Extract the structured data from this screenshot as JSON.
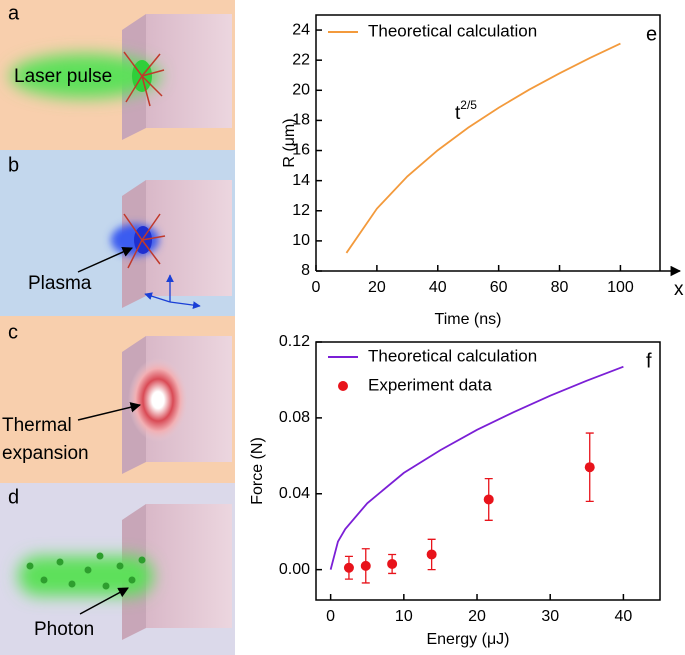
{
  "panels": [
    {
      "label": "a",
      "caption": [
        "Laser pulse"
      ]
    },
    {
      "label": "b",
      "caption": [
        "Plasma"
      ]
    },
    {
      "label": "c",
      "caption": [
        "Thermal",
        "expansion"
      ]
    },
    {
      "label": "d",
      "caption": [
        "Photon"
      ]
    }
  ],
  "chart_data": [
    {
      "type": "line",
      "panel_label": "e",
      "x_label": "Time (ns)",
      "y_label": "R (μm)",
      "x_axis_symbol": "x",
      "annotation": {
        "base": "t",
        "superscript": "2/5"
      },
      "legend": "upper left",
      "xlim": [
        0,
        113
      ],
      "ylim": [
        8,
        25
      ],
      "xticks": [
        0,
        20,
        40,
        60,
        80,
        100
      ],
      "yticks": [
        8,
        10,
        12,
        14,
        16,
        18,
        20,
        22,
        24
      ],
      "series": [
        {
          "name": "Theoretical calculation",
          "type": "line",
          "color": "#f39a3c",
          "x": [
            10,
            20,
            30,
            40,
            50,
            60,
            70,
            80,
            90,
            100
          ],
          "values": [
            9.2,
            12.14,
            14.28,
            16.02,
            17.52,
            18.84,
            20.04,
            21.13,
            22.15,
            23.1
          ]
        }
      ]
    },
    {
      "type": "line",
      "panel_label": "f",
      "x_label": "Energy (μJ)",
      "y_label": "Force (N)",
      "legend": "upper left",
      "xlim": [
        -2,
        45
      ],
      "ylim": [
        -0.016,
        0.12
      ],
      "xticks": [
        0,
        10,
        20,
        30,
        40
      ],
      "yticks": [
        {
          "value": 0,
          "label": "0.00"
        },
        0.04,
        0.08,
        0.12
      ],
      "series": [
        {
          "name": "Theoretical calculation",
          "type": "line",
          "color": "#7b1fd6",
          "x": [
            0,
            1,
            2,
            5,
            10,
            15,
            20,
            25,
            30,
            35,
            40
          ],
          "values": [
            0,
            0.0148,
            0.0214,
            0.035,
            0.051,
            0.063,
            0.0737,
            0.083,
            0.0917,
            0.0996,
            0.107
          ]
        },
        {
          "name": "Experiment data",
          "type": "scatter",
          "color": "#e8131b",
          "x": [
            2.5,
            4.8,
            8.4,
            13.8,
            21.6,
            35.4
          ],
          "values": [
            0.001,
            0.002,
            0.003,
            0.008,
            0.037,
            0.054
          ],
          "errors": [
            0.006,
            0.009,
            0.005,
            0.008,
            0.011,
            0.018
          ]
        }
      ]
    }
  ]
}
